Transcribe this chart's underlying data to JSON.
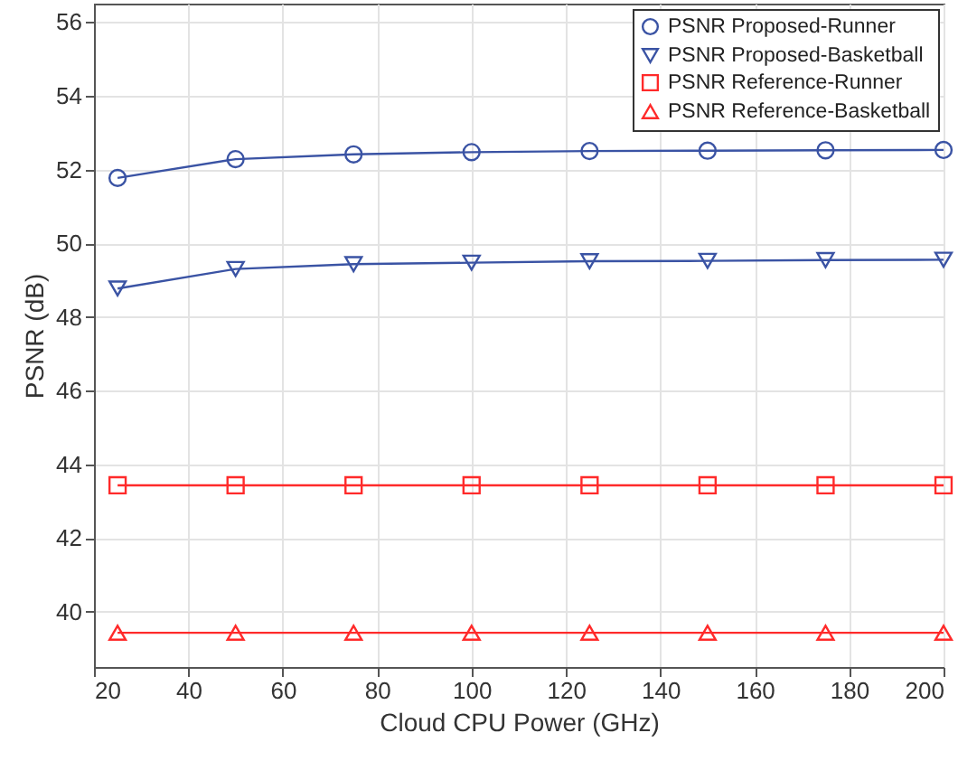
{
  "chart_data": {
    "type": "line",
    "xlabel": "Cloud CPU Power (GHz)",
    "ylabel": "PSNR (dB)",
    "x": [
      25,
      50,
      75,
      100,
      125,
      150,
      175,
      200
    ],
    "series": [
      {
        "name": "PSNR Proposed-Runner",
        "color": "#3a53a4",
        "marker": "circle",
        "values": [
          51.77,
          52.28,
          52.41,
          52.47,
          52.5,
          52.51,
          52.52,
          52.53
        ]
      },
      {
        "name": "PSNR Proposed-Basketball",
        "color": "#3a53a4",
        "marker": "triangle-down",
        "values": [
          48.77,
          49.3,
          49.43,
          49.47,
          49.51,
          49.52,
          49.54,
          49.55
        ]
      },
      {
        "name": "PSNR Reference-Runner",
        "color": "#ff2a2a",
        "marker": "square",
        "values": [
          43.43,
          43.43,
          43.43,
          43.43,
          43.43,
          43.43,
          43.43,
          43.43
        ]
      },
      {
        "name": "PSNR Reference-Basketball",
        "color": "#ff2a2a",
        "marker": "triangle",
        "values": [
          39.43,
          39.43,
          39.43,
          39.43,
          39.43,
          39.43,
          39.43,
          39.43
        ]
      }
    ],
    "xlim": [
      20,
      200
    ],
    "xticks": [
      20,
      40,
      60,
      80,
      100,
      120,
      140,
      160,
      180,
      200
    ],
    "ylim": [
      38.5,
      56.5
    ],
    "yticks": [
      40,
      42,
      44,
      46,
      48,
      50,
      52,
      54,
      56
    ],
    "grid": true,
    "legend": "top right",
    "line_style": "solid"
  }
}
